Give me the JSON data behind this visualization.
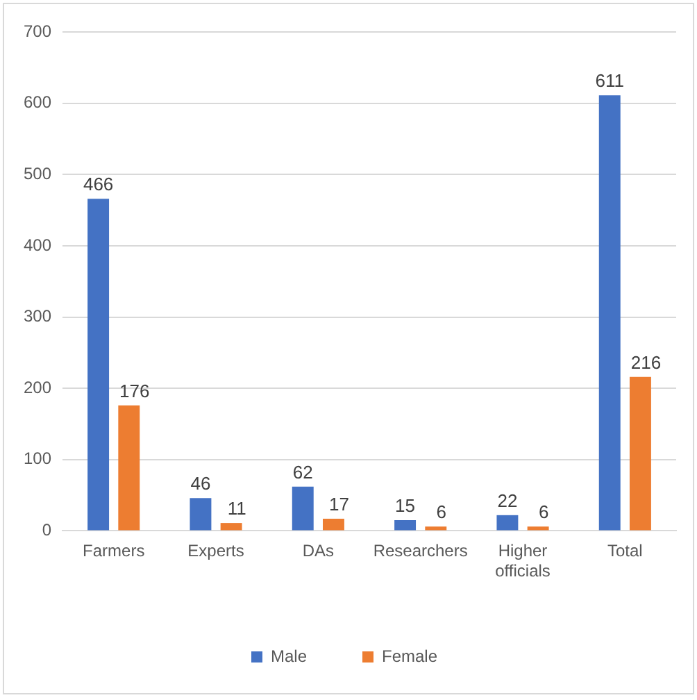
{
  "chart_data": {
    "type": "bar",
    "categories": [
      "Farmers",
      "Experts",
      "DAs",
      "Researchers",
      "Higher officials",
      "Total"
    ],
    "series": [
      {
        "name": "Male",
        "color": "#4472c4",
        "values": [
          466,
          46,
          62,
          15,
          22,
          611
        ]
      },
      {
        "name": "Female",
        "color": "#ed7d31",
        "values": [
          176,
          11,
          17,
          6,
          6,
          216
        ]
      }
    ],
    "ylim": [
      0,
      700
    ],
    "yticks": [
      0,
      100,
      200,
      300,
      400,
      500,
      600,
      700
    ],
    "grid": "y",
    "legend": "bottom",
    "data_labels": true
  }
}
